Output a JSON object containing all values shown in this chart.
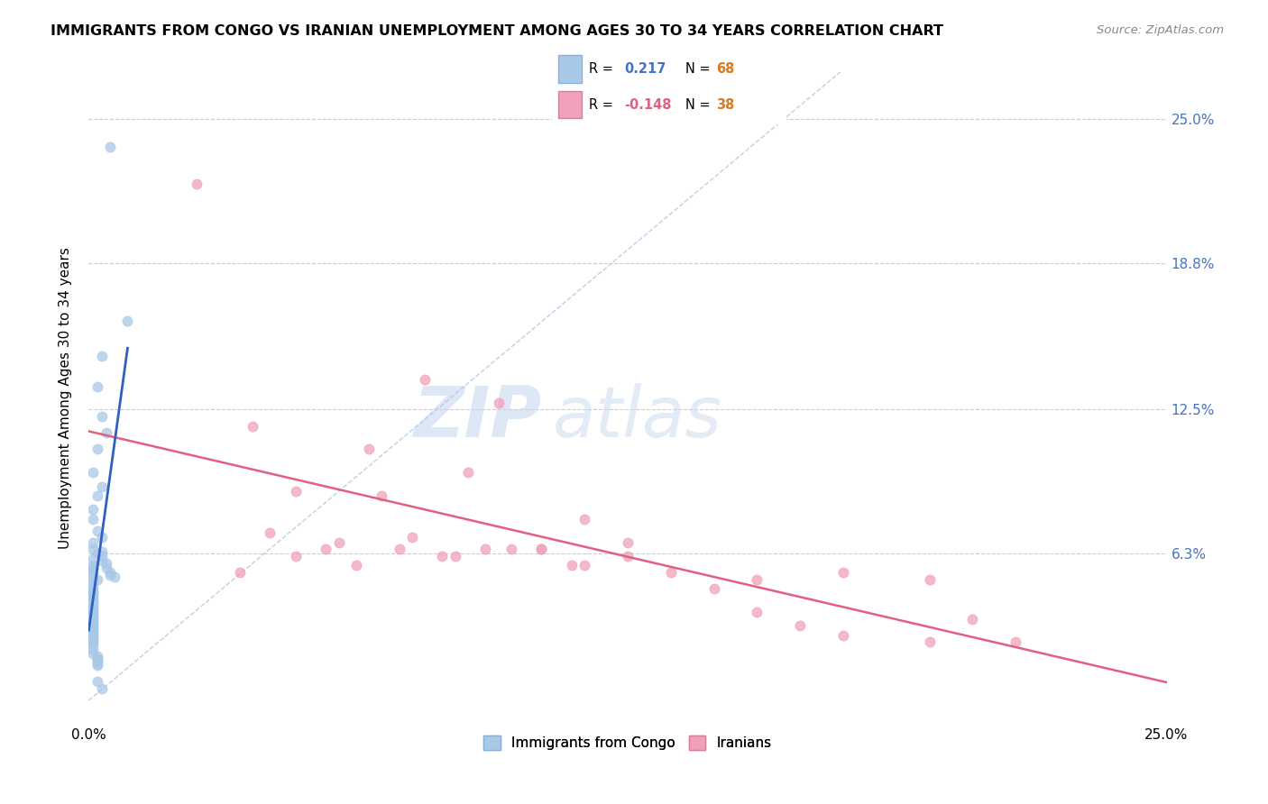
{
  "title": "IMMIGRANTS FROM CONGO VS IRANIAN UNEMPLOYMENT AMONG AGES 30 TO 34 YEARS CORRELATION CHART",
  "source": "Source: ZipAtlas.com",
  "ylabel": "Unemployment Among Ages 30 to 34 years",
  "ytick_values": [
    0.063,
    0.125,
    0.188,
    0.25
  ],
  "ytick_labels": [
    "6.3%",
    "12.5%",
    "18.8%",
    "25.0%"
  ],
  "xlim": [
    0.0,
    0.25
  ],
  "ylim": [
    -0.01,
    0.27
  ],
  "xbottom": -0.002,
  "congo_color": "#a8c8e8",
  "iranian_color": "#f0a0b8",
  "congo_line_color": "#3060c0",
  "iranian_line_color": "#e06080",
  "diag_line_color": "#b0c4de",
  "r1_color": "#4472c4",
  "r2_color": "#e06080",
  "n_color": "#e07820",
  "watermark_zip_color": "#c8d8f0",
  "watermark_atlas_color": "#c8d8f0",
  "congo_points_x": [
    0.005,
    0.009,
    0.003,
    0.002,
    0.003,
    0.004,
    0.002,
    0.001,
    0.003,
    0.002,
    0.001,
    0.001,
    0.002,
    0.003,
    0.001,
    0.001,
    0.002,
    0.001,
    0.001,
    0.001,
    0.001,
    0.001,
    0.001,
    0.002,
    0.001,
    0.001,
    0.001,
    0.001,
    0.001,
    0.001,
    0.001,
    0.001,
    0.001,
    0.001,
    0.001,
    0.001,
    0.001,
    0.001,
    0.001,
    0.001,
    0.001,
    0.001,
    0.001,
    0.001,
    0.001,
    0.001,
    0.001,
    0.001,
    0.001,
    0.001,
    0.001,
    0.001,
    0.001,
    0.002,
    0.002,
    0.002,
    0.002,
    0.002,
    0.003,
    0.003,
    0.003,
    0.004,
    0.004,
    0.005,
    0.005,
    0.006,
    0.002,
    0.003
  ],
  "congo_points_y": [
    0.238,
    0.163,
    0.148,
    0.135,
    0.122,
    0.115,
    0.108,
    0.098,
    0.092,
    0.088,
    0.082,
    0.078,
    0.073,
    0.07,
    0.068,
    0.065,
    0.063,
    0.061,
    0.058,
    0.057,
    0.056,
    0.055,
    0.053,
    0.052,
    0.051,
    0.05,
    0.048,
    0.047,
    0.046,
    0.045,
    0.044,
    0.043,
    0.042,
    0.041,
    0.04,
    0.039,
    0.038,
    0.037,
    0.036,
    0.035,
    0.034,
    0.033,
    0.032,
    0.031,
    0.03,
    0.029,
    0.028,
    0.027,
    0.026,
    0.025,
    0.024,
    0.022,
    0.02,
    0.019,
    0.018,
    0.017,
    0.016,
    0.015,
    0.064,
    0.062,
    0.06,
    0.059,
    0.057,
    0.055,
    0.054,
    0.053,
    0.008,
    0.005
  ],
  "iranian_points_x": [
    0.025,
    0.078,
    0.038,
    0.065,
    0.048,
    0.088,
    0.055,
    0.095,
    0.105,
    0.068,
    0.115,
    0.125,
    0.075,
    0.042,
    0.058,
    0.085,
    0.098,
    0.112,
    0.135,
    0.155,
    0.145,
    0.175,
    0.195,
    0.155,
    0.165,
    0.082,
    0.092,
    0.048,
    0.062,
    0.072,
    0.035,
    0.105,
    0.115,
    0.125,
    0.205,
    0.175,
    0.195,
    0.215
  ],
  "iranian_points_y": [
    0.222,
    0.138,
    0.118,
    0.108,
    0.09,
    0.098,
    0.065,
    0.128,
    0.065,
    0.088,
    0.078,
    0.068,
    0.07,
    0.072,
    0.068,
    0.062,
    0.065,
    0.058,
    0.055,
    0.052,
    0.048,
    0.055,
    0.052,
    0.038,
    0.032,
    0.062,
    0.065,
    0.062,
    0.058,
    0.065,
    0.055,
    0.065,
    0.058,
    0.062,
    0.035,
    0.028,
    0.025,
    0.025
  ]
}
